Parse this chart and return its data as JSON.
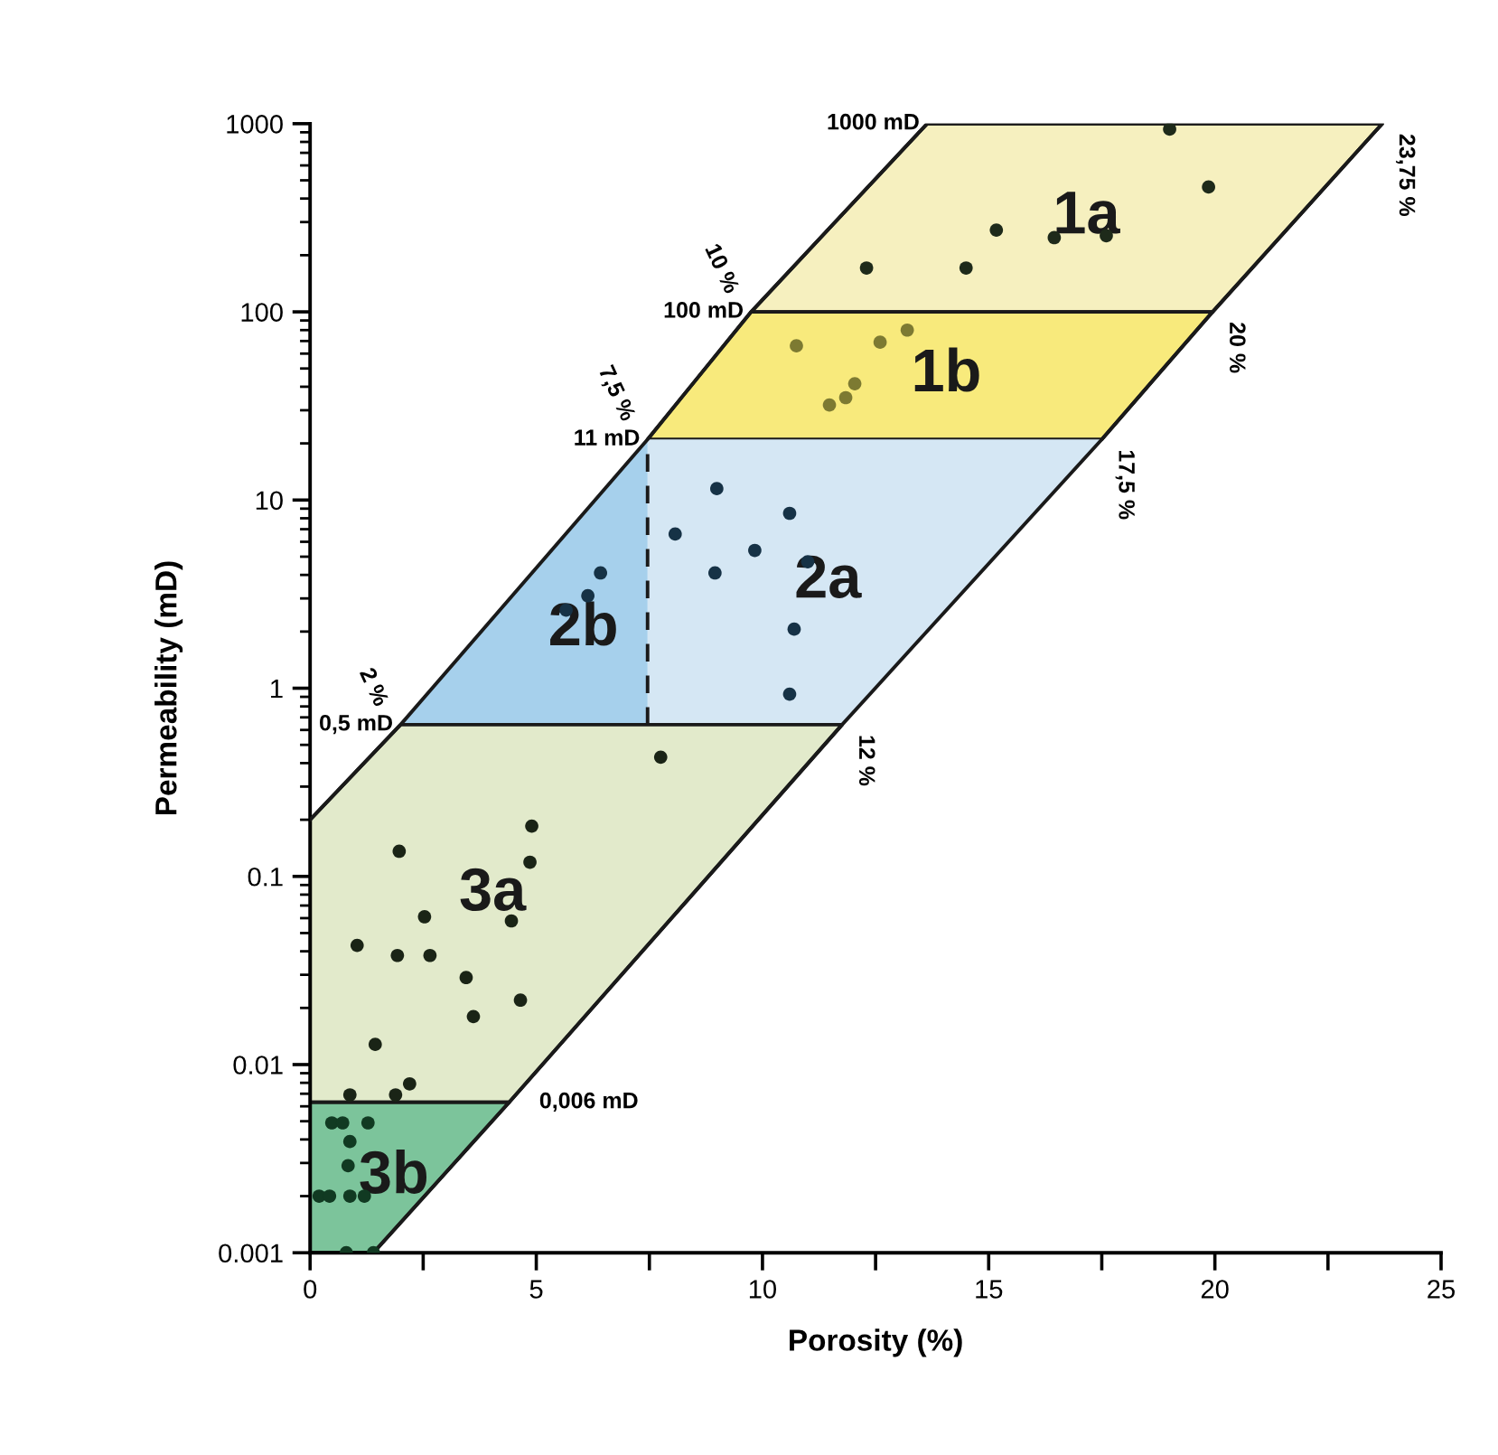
{
  "chart_data": {
    "type": "scatter",
    "xlabel": "Porosity (%)",
    "ylabel": "Permeability (mD)",
    "log": "y",
    "grid": false,
    "legend": false,
    "xlim": [
      0,
      25
    ],
    "xticks": [
      0,
      {
        "value": 2.5,
        "label": null
      },
      5,
      {
        "value": 7.5,
        "label": null
      },
      10,
      {
        "value": 12.5,
        "label": null
      },
      15,
      {
        "value": 17.5,
        "label": null
      },
      20,
      {
        "value": 22.5,
        "label": null
      },
      25
    ],
    "ylim": [
      0.001,
      1000
    ],
    "yticks": [
      {
        "value": 0.001,
        "label": "0.001"
      },
      {
        "value": 0.01,
        "label": "0.01"
      },
      {
        "value": 0.1,
        "label": "0.1"
      },
      1,
      10,
      100,
      1000
    ],
    "series": [
      {
        "type": "line",
        "color": "#1a1a1a",
        "line_style": "solid",
        "marker": "none",
        "x": [
          0,
          2.0,
          7.46,
          9.75,
          13.64,
          23.7,
          19.95,
          17.5,
          11.76,
          4.4,
          1.4
        ],
        "values": [
          0.2,
          0.64,
          21,
          100,
          1000,
          1000,
          100,
          21,
          0.64,
          0.0063,
          0.001
        ]
      },
      {
        "type": "line",
        "color": "#1a1a1a",
        "line_style": "dashed",
        "marker": "none",
        "x": [
          7.46,
          7.46
        ],
        "values": [
          0.64,
          21
        ]
      },
      {
        "type": "area",
        "name": "1a",
        "color": "#f6f0bf",
        "x": [
          9.75,
          13.64,
          23.7,
          19.95
        ],
        "values": [
          100,
          1000,
          1000,
          100
        ]
      },
      {
        "type": "area",
        "name": "1b",
        "color": "#f8ea7c",
        "x": [
          7.46,
          9.75,
          19.95,
          17.5
        ],
        "values": [
          21,
          100,
          100,
          21
        ]
      },
      {
        "type": "area",
        "name": "2a",
        "color": "#d5e7f4",
        "x": [
          7.46,
          7.46,
          17.5,
          11.76
        ],
        "values": [
          0.64,
          21,
          21,
          0.64
        ]
      },
      {
        "type": "area",
        "name": "2b",
        "color": "#a6d0ec",
        "x": [
          2.0,
          7.46,
          7.46
        ],
        "values": [
          0.64,
          21,
          0.64
        ]
      },
      {
        "type": "area",
        "name": "3a",
        "color": "#e2eacb",
        "x": [
          0,
          0,
          2.0,
          11.76,
          4.4
        ],
        "values": [
          0.0063,
          0.2,
          0.64,
          0.64,
          0.0063
        ]
      },
      {
        "type": "area",
        "name": "3b",
        "color": "#7cc49b",
        "x": [
          0,
          0,
          4.4,
          1.4
        ],
        "values": [
          0.001,
          0.0063,
          0.0063,
          0.001
        ]
      },
      {
        "type": "scatter",
        "color": "#1e2a1a",
        "marker": "circle",
        "x": [
          19.0,
          19.86,
          15.17,
          16.45,
          17.6,
          12.3,
          14.5
        ],
        "values": [
          935,
          461,
          272,
          248,
          254,
          171,
          171
        ]
      },
      {
        "type": "scatter",
        "color": "#7d7a32",
        "marker": "circle",
        "x": [
          10.75,
          13.2,
          12.6,
          12.04,
          11.84,
          11.48
        ],
        "values": [
          66,
          80,
          69,
          41.5,
          35,
          32
        ]
      },
      {
        "type": "scatter",
        "color": "#163246",
        "marker": "circle",
        "x": [
          8.99,
          10.6,
          8.07,
          9.83,
          11.0,
          8.95,
          10.7,
          10.6,
          6.42,
          6.14,
          5.66
        ],
        "values": [
          11.5,
          8.5,
          6.6,
          5.4,
          4.7,
          4.1,
          2.06,
          0.93,
          4.1,
          3.1,
          2.6
        ]
      },
      {
        "type": "scatter",
        "color": "#1a2416",
        "marker": "circle",
        "x": [
          7.75,
          4.9,
          4.86,
          1.97,
          2.53,
          4.45,
          1.04,
          1.93,
          2.65,
          3.45,
          4.65,
          3.61,
          1.44,
          2.2,
          0.88,
          1.89
        ],
        "values": [
          0.43,
          0.185,
          0.119,
          0.136,
          0.061,
          0.058,
          0.043,
          0.038,
          0.038,
          0.029,
          0.022,
          0.018,
          0.0128,
          0.0079,
          0.0069,
          0.0069
        ]
      },
      {
        "type": "scatter",
        "color": "#113a22",
        "marker": "circle",
        "x": [
          0.48,
          0.72,
          1.28,
          0.88,
          0.84,
          0.2,
          0.43,
          0.88,
          1.2,
          0.8,
          1.4
        ],
        "values": [
          0.0049,
          0.0049,
          0.0049,
          0.0039,
          0.0029,
          0.002,
          0.002,
          0.002,
          0.002,
          0.001,
          0.001
        ]
      }
    ],
    "annotations": [
      {
        "text": "1000 mD",
        "x": 13.64,
        "y": 1000
      },
      {
        "text": "100 mD",
        "x": 9.75,
        "y": 100
      },
      {
        "text": "11 mD",
        "x": 7.46,
        "y": 21
      },
      {
        "text": "0,5 mD",
        "x": 2.0,
        "y": 0.64
      },
      {
        "text": "0,006 mD",
        "x": 4.4,
        "y": 0.0063
      },
      {
        "text": "23,75 %",
        "x": 23.7,
        "y": 1000
      },
      {
        "text": "20 %",
        "x": 19.95,
        "y": 100
      },
      {
        "text": "17,5 %",
        "x": 17.5,
        "y": 21
      },
      {
        "text": "12 %",
        "x": 11.76,
        "y": 0.64
      },
      {
        "text": "10 %",
        "x": 9.75,
        "y": 100
      },
      {
        "text": "7,5 %",
        "x": 7.46,
        "y": 21
      },
      {
        "text": "2 %",
        "x": 2.0,
        "y": 0.64
      }
    ]
  }
}
